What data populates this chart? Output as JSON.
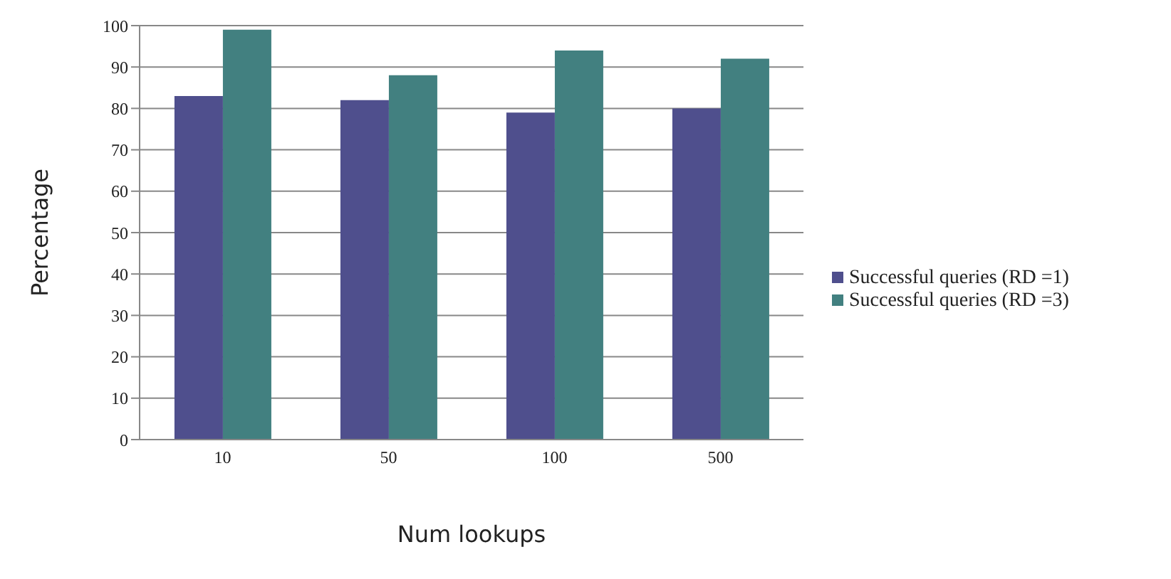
{
  "chart_data": {
    "type": "bar",
    "xlabel": "Num lookups",
    "ylabel": "Percentage",
    "categories": [
      "10",
      "50",
      "100",
      "500"
    ],
    "series": [
      {
        "name": "Successful queries (RD =1)",
        "color": "#4f4f8d",
        "values": [
          83,
          82,
          79,
          80
        ]
      },
      {
        "name": "Successful queries (RD =3)",
        "color": "#428080",
        "values": [
          99,
          88,
          94,
          92
        ]
      }
    ],
    "ylim": [
      0,
      100
    ],
    "yticks": [
      0,
      10,
      20,
      30,
      40,
      50,
      60,
      70,
      80,
      90,
      100
    ],
    "grid": "y",
    "legend": "right"
  }
}
